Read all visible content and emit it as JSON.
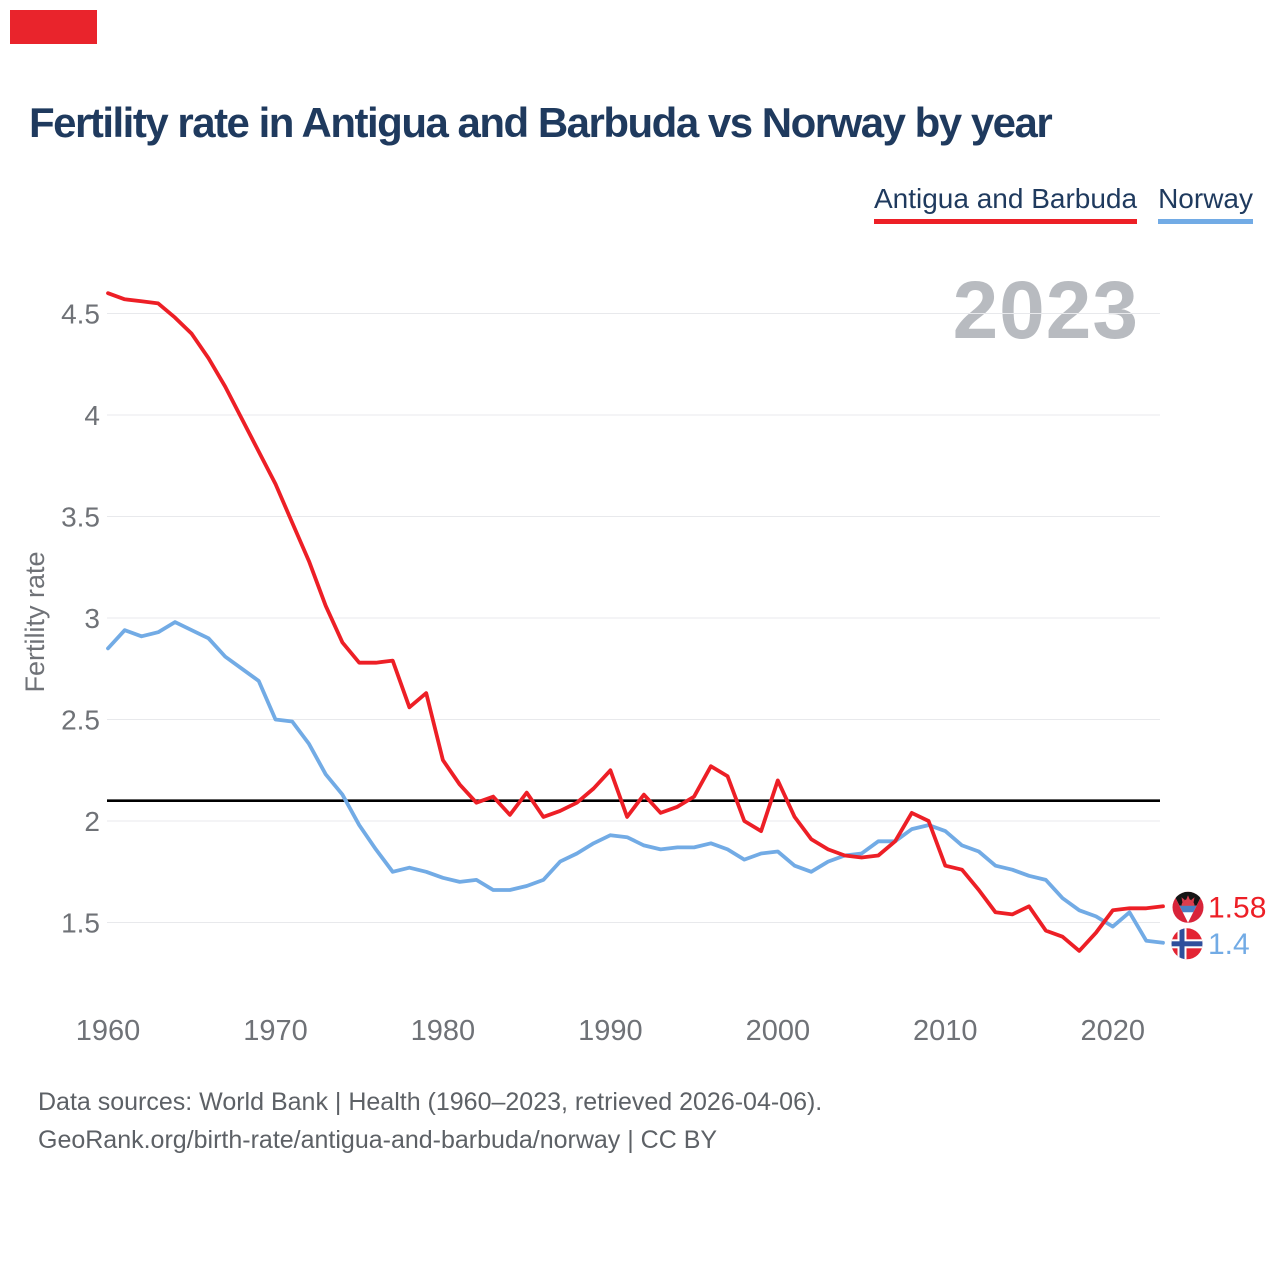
{
  "page": {
    "title": "Fertility rate in Antigua and Barbuda vs Norway by year"
  },
  "corner_mark": {
    "color": "#e9242c"
  },
  "legend": [
    {
      "label": "Antigua and Barbuda",
      "color": "#ed1f26"
    },
    {
      "label": "Norway",
      "color": "#72abe5"
    }
  ],
  "watermark": "2023",
  "footer": {
    "line1": "Data sources: World Bank | Health (1960–2023, retrieved 2026-04-06).",
    "line2": "GeoRank.org/birth-rate/antigua-and-barbuda/norway | CC BY"
  },
  "chart_data": {
    "type": "line",
    "title": "Fertility rate in Antigua and Barbuda vs Norway by year",
    "xlabel": "",
    "ylabel": "Fertility rate",
    "ylim": [
      1.15,
      4.75
    ],
    "grid": true,
    "legend_position": "top-right",
    "yticks": [
      1.5,
      2,
      2.5,
      3,
      3.5,
      4,
      4.5
    ],
    "xticks": [
      1960,
      1970,
      1980,
      1990,
      2000,
      2010,
      2020
    ],
    "reference_line": {
      "value": 2.1,
      "color": "#000000"
    },
    "years": [
      1960,
      1961,
      1962,
      1963,
      1964,
      1965,
      1966,
      1967,
      1968,
      1969,
      1970,
      1971,
      1972,
      1973,
      1974,
      1975,
      1976,
      1977,
      1978,
      1979,
      1980,
      1981,
      1982,
      1983,
      1984,
      1985,
      1986,
      1987,
      1988,
      1989,
      1990,
      1991,
      1992,
      1993,
      1994,
      1995,
      1996,
      1997,
      1998,
      1999,
      2000,
      2001,
      2002,
      2003,
      2004,
      2005,
      2006,
      2007,
      2008,
      2009,
      2010,
      2011,
      2012,
      2013,
      2014,
      2015,
      2016,
      2017,
      2018,
      2019,
      2020,
      2021,
      2022,
      2023
    ],
    "series": [
      {
        "name": "Antigua and Barbuda",
        "color": "#ed1f26",
        "end_label": "1.58",
        "end_flag": "antigua-and-barbuda",
        "values": [
          4.6,
          4.57,
          4.56,
          4.55,
          4.48,
          4.4,
          4.28,
          4.14,
          3.98,
          3.82,
          3.66,
          3.47,
          3.28,
          3.06,
          2.88,
          2.78,
          2.78,
          2.79,
          2.56,
          2.63,
          2.3,
          2.18,
          2.09,
          2.12,
          2.03,
          2.14,
          2.02,
          2.05,
          2.09,
          2.16,
          2.25,
          2.02,
          2.13,
          2.04,
          2.07,
          2.12,
          2.27,
          2.22,
          2.0,
          1.95,
          2.2,
          2.02,
          1.91,
          1.86,
          1.83,
          1.82,
          1.83,
          1.9,
          2.04,
          2.0,
          1.78,
          1.76,
          1.66,
          1.55,
          1.54,
          1.58,
          1.46,
          1.43,
          1.36,
          1.45,
          1.56,
          1.57,
          1.57,
          1.58
        ]
      },
      {
        "name": "Norway",
        "color": "#72abe5",
        "end_label": "1.4",
        "end_flag": "norway",
        "values": [
          2.85,
          2.94,
          2.91,
          2.93,
          2.98,
          2.94,
          2.9,
          2.81,
          2.75,
          2.69,
          2.5,
          2.49,
          2.38,
          2.23,
          2.13,
          1.98,
          1.86,
          1.75,
          1.77,
          1.75,
          1.72,
          1.7,
          1.71,
          1.66,
          1.66,
          1.68,
          1.71,
          1.8,
          1.84,
          1.89,
          1.93,
          1.92,
          1.88,
          1.86,
          1.87,
          1.87,
          1.89,
          1.86,
          1.81,
          1.84,
          1.85,
          1.78,
          1.75,
          1.8,
          1.83,
          1.84,
          1.9,
          1.9,
          1.96,
          1.98,
          1.95,
          1.88,
          1.85,
          1.78,
          1.76,
          1.73,
          1.71,
          1.62,
          1.56,
          1.53,
          1.48,
          1.55,
          1.41,
          1.4
        ]
      }
    ],
    "watermark": "2023"
  }
}
